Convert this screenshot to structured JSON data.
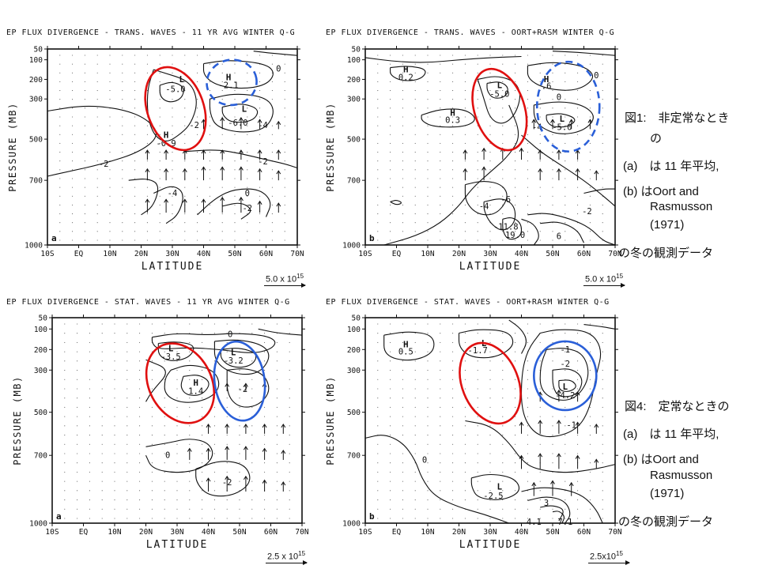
{
  "panels": [
    {
      "id": "p1",
      "title": "EP FLUX DIVERGENCE - TRANS. WAVES - 11 YR AVG WINTER Q-G",
      "panel_letter": "a",
      "scale_label": "5.0 x 10",
      "scale_exp": "15",
      "labels": [
        {
          "text": "L",
          "lat": 33,
          "p": 200
        },
        {
          "text": "-5.0",
          "lat": 31,
          "p": 250
        },
        {
          "text": "H",
          "lat": 48,
          "p": 190
        },
        {
          "text": "-2.1",
          "lat": 48,
          "p": 230
        },
        {
          "text": "L",
          "lat": 53,
          "p": 350
        },
        {
          "text": "-6.0",
          "lat": 51,
          "p": 420
        },
        {
          "text": "H",
          "lat": 28,
          "p": 480
        },
        {
          "text": "-0.9",
          "lat": 28,
          "p": 520
        },
        {
          "text": "-2",
          "lat": 37,
          "p": 430
        },
        {
          "text": "-4",
          "lat": 59,
          "p": 430
        },
        {
          "text": "-2",
          "lat": 8,
          "p": 620
        },
        {
          "text": "-2",
          "lat": 59,
          "p": 610
        },
        {
          "text": "-4",
          "lat": 30,
          "p": 760
        },
        {
          "text": "0",
          "lat": 54,
          "p": 760
        },
        {
          "text": "-2",
          "lat": 54,
          "p": 830
        },
        {
          "text": "0",
          "lat": 64,
          "p": 145
        }
      ]
    },
    {
      "id": "p2",
      "title": "EP FLUX DIVERGENCE - TRANS. WAVES - OORT+RASM WINTER Q-G",
      "panel_letter": "b",
      "scale_label": "5.0 x 10",
      "scale_exp": "15",
      "labels": [
        {
          "text": "H",
          "lat": 3,
          "p": 150
        },
        {
          "text": "0.2",
          "lat": 3,
          "p": 190
        },
        {
          "text": "L",
          "lat": 33,
          "p": 230
        },
        {
          "text": "-5.0",
          "lat": 33,
          "p": 275
        },
        {
          "text": "H",
          "lat": 48,
          "p": 200
        },
        {
          "text": ".6",
          "lat": 48,
          "p": 235
        },
        {
          "text": "H",
          "lat": 18,
          "p": 370
        },
        {
          "text": "0.3",
          "lat": 18,
          "p": 405
        },
        {
          "text": "L",
          "lat": 53,
          "p": 400
        },
        {
          "text": "-5.0",
          "lat": 53,
          "p": 440
        },
        {
          "text": "-4",
          "lat": 45,
          "p": 440
        },
        {
          "text": "0",
          "lat": 52,
          "p": 290
        },
        {
          "text": "-4",
          "lat": 28,
          "p": 820
        },
        {
          "text": "-6",
          "lat": 35,
          "p": 790
        },
        {
          "text": "-11.8",
          "lat": 35,
          "p": 915
        },
        {
          "text": "19.0",
          "lat": 38,
          "p": 955
        },
        {
          "text": "-2",
          "lat": 61,
          "p": 845
        },
        {
          "text": "6",
          "lat": 52,
          "p": 960
        },
        {
          "text": "0",
          "lat": 64,
          "p": 180
        }
      ]
    },
    {
      "id": "p3",
      "title": "EP FLUX DIVERGENCE - STAT. WAVES - 11 YR AVG WINTER Q-G",
      "panel_letter": "a",
      "scale_label": "2.5 x 10",
      "scale_exp": "15",
      "labels": [
        {
          "text": "L",
          "lat": 28,
          "p": 195
        },
        {
          "text": "-3.5",
          "lat": 28,
          "p": 235
        },
        {
          "text": "L",
          "lat": 48,
          "p": 215
        },
        {
          "text": "-3.2",
          "lat": 48,
          "p": 255
        },
        {
          "text": "H",
          "lat": 36,
          "p": 360
        },
        {
          "text": "1.4",
          "lat": 36,
          "p": 400
        },
        {
          "text": "-2",
          "lat": 51,
          "p": 390
        },
        {
          "text": "0",
          "lat": 47,
          "p": 125
        },
        {
          "text": "0",
          "lat": 27,
          "p": 700
        },
        {
          "text": "-2",
          "lat": 46,
          "p": 820
        }
      ]
    },
    {
      "id": "p4",
      "title": "EP FLUX DIVERGENCE - STAT. WAVES - OORT+RASM WINTER Q-G",
      "panel_letter": "b",
      "scale_label": "2.5x10",
      "scale_exp": "15",
      "labels": [
        {
          "text": "H",
          "lat": 3,
          "p": 175
        },
        {
          "text": "0.5",
          "lat": 3,
          "p": 210
        },
        {
          "text": "L",
          "lat": 28,
          "p": 170
        },
        {
          "text": "-1.7",
          "lat": 26,
          "p": 205
        },
        {
          "text": "-1",
          "lat": 54,
          "p": 200
        },
        {
          "text": "-2",
          "lat": 54,
          "p": 270
        },
        {
          "text": "L",
          "lat": 54,
          "p": 380
        },
        {
          "text": "-4.2",
          "lat": 54,
          "p": 420
        },
        {
          "text": "0",
          "lat": 9,
          "p": 720
        },
        {
          "text": "-1",
          "lat": 56,
          "p": 560
        },
        {
          "text": "L",
          "lat": 33,
          "p": 840
        },
        {
          "text": "-2.5",
          "lat": 31,
          "p": 880
        },
        {
          "text": "3",
          "lat": 48,
          "p": 910
        },
        {
          "text": "4.1",
          "lat": 44,
          "p": 995
        },
        {
          "text": "7.1",
          "lat": 54,
          "p": 995
        }
      ]
    }
  ],
  "axes": {
    "ylabel": "PRESSURE  (MB)",
    "xlabel": "LATITUDE",
    "yticks": [
      "50",
      "100",
      "200",
      "300",
      "500",
      "700",
      "1000"
    ],
    "xticks": [
      "10S",
      "EQ",
      "10N",
      "20N",
      "30N",
      "40N",
      "50N",
      "60N",
      "70N"
    ]
  },
  "captions": {
    "fig1": {
      "line1": "図1:　非定常なとき",
      "line2": "の",
      "line3": "(a)　は 11 年平均,",
      "line4": "(b) はOort and",
      "line5": "Rasmusson",
      "line6": "(1971)",
      "line7": "の冬の観測データ"
    },
    "fig4": {
      "line1": "図4:　定常なときの",
      "line2": "(a)　は 11 年平均,",
      "line3": "(b) はOort and",
      "line4": "Rasmusson",
      "line5": "(1971)",
      "line6": "の冬の観測データ"
    }
  },
  "colors": {
    "ink": "#111111",
    "red_marker": "#e01010",
    "blue_marker": "#2a5fd8"
  },
  "chart_data": [
    {
      "type": "heatmap",
      "title": "EP FLUX DIVERGENCE - TRANS. WAVES - 11 YR AVG WINTER Q-G",
      "xlabel": "LATITUDE",
      "ylabel": "PRESSURE  (MB)",
      "x_range": [
        "10S",
        "70N"
      ],
      "y_range_mb": [
        1000,
        50
      ],
      "extrema": [
        {
          "label": "L",
          "value": -5.0,
          "lat": 31,
          "p_mb": 250
        },
        {
          "label": "H",
          "value": -2.1,
          "lat": 48,
          "p_mb": 210
        },
        {
          "label": "L",
          "value": -6.0,
          "lat": 52,
          "p_mb": 400
        },
        {
          "label": "H",
          "value": -0.9,
          "lat": 28,
          "p_mb": 500
        }
      ]
    },
    {
      "type": "heatmap",
      "title": "EP FLUX DIVERGENCE - TRANS. WAVES - OORT+RASM WINTER Q-G",
      "xlabel": "LATITUDE",
      "ylabel": "PRESSURE  (MB)",
      "x_range": [
        "10S",
        "70N"
      ],
      "y_range_mb": [
        1000,
        50
      ],
      "extrema": [
        {
          "label": "H",
          "value": 0.2,
          "lat": 3,
          "p_mb": 170
        },
        {
          "label": "L",
          "value": -5.0,
          "lat": 33,
          "p_mb": 250
        },
        {
          "label": "H",
          "value": 0.6,
          "lat": 48,
          "p_mb": 220
        },
        {
          "label": "H",
          "value": 0.3,
          "lat": 18,
          "p_mb": 390
        },
        {
          "label": "L",
          "value": -5.0,
          "lat": 53,
          "p_mb": 420
        },
        {
          "label": "L",
          "value": -11.8,
          "lat": 35,
          "p_mb": 920
        },
        {
          "label": "H",
          "value": 19.0,
          "lat": 38,
          "p_mb": 955
        }
      ]
    },
    {
      "type": "heatmap",
      "title": "EP FLUX DIVERGENCE - STAT. WAVES - 11 YR AVG WINTER Q-G",
      "xlabel": "LATITUDE",
      "ylabel": "PRESSURE  (MB)",
      "x_range": [
        "10S",
        "70N"
      ],
      "y_range_mb": [
        1000,
        50
      ],
      "extrema": [
        {
          "label": "L",
          "value": -3.5,
          "lat": 28,
          "p_mb": 215
        },
        {
          "label": "L",
          "value": -3.2,
          "lat": 48,
          "p_mb": 235
        },
        {
          "label": "H",
          "value": 1.4,
          "lat": 36,
          "p_mb": 380
        }
      ]
    },
    {
      "type": "heatmap",
      "title": "EP FLUX DIVERGENCE - STAT. WAVES - OORT+RASM WINTER Q-G",
      "xlabel": "LATITUDE",
      "ylabel": "PRESSURE  (MB)",
      "x_range": [
        "10S",
        "70N"
      ],
      "y_range_mb": [
        1000,
        50
      ],
      "extrema": [
        {
          "label": "H",
          "value": 0.5,
          "lat": 3,
          "p_mb": 190
        },
        {
          "label": "L",
          "value": -1.7,
          "lat": 27,
          "p_mb": 190
        },
        {
          "label": "L",
          "value": -4.2,
          "lat": 54,
          "p_mb": 400
        },
        {
          "label": "L",
          "value": -2.5,
          "lat": 32,
          "p_mb": 860
        },
        {
          "label": "H",
          "value": 4.1,
          "lat": 44,
          "p_mb": 995
        },
        {
          "label": "H",
          "value": 7.1,
          "lat": 54,
          "p_mb": 995
        }
      ]
    }
  ]
}
